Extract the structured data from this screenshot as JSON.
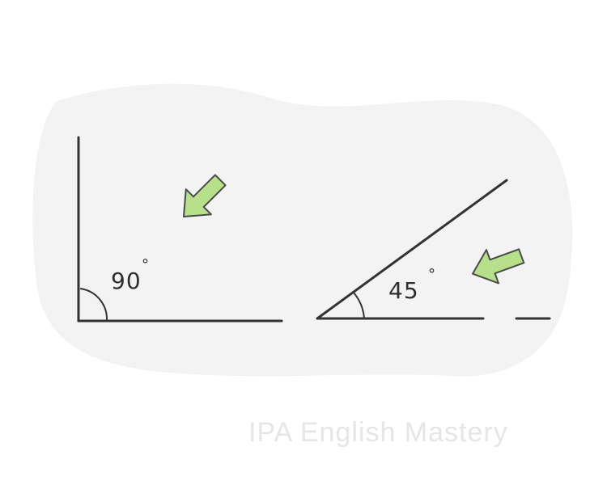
{
  "angles": [
    {
      "value": "90",
      "degree_symbol": "°"
    },
    {
      "value": "45",
      "degree_symbol": "°"
    }
  ],
  "colors": {
    "background_blob": "#f3f3f3",
    "line": "#333333",
    "arrow_fill": "#b7e08a",
    "arrow_stroke": "#4a4a4a"
  },
  "icons": [
    "arrow-pointer-icon",
    "arrow-pointer-icon"
  ],
  "watermark": "IPA English Mastery"
}
